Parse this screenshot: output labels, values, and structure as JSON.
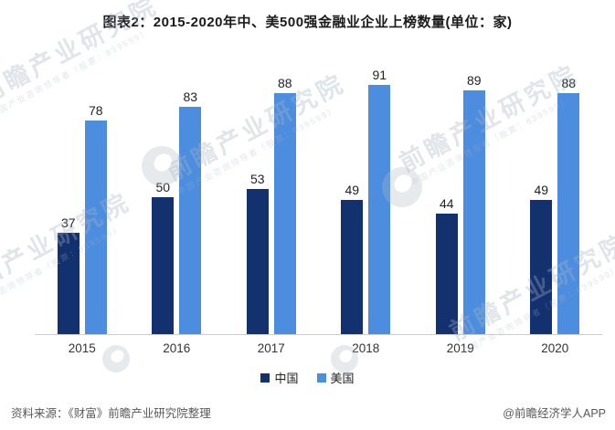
{
  "title": "图表2：2015-2020年中、美500强金融业企业上榜数量(单位：家)",
  "chart_data": {
    "type": "bar",
    "title": "图表2：2015-2020年中、美500强金融业企业上榜数量(单位：家)",
    "unit": "家",
    "categories": [
      "2015",
      "2016",
      "2017",
      "2018",
      "2019",
      "2020"
    ],
    "series": [
      {
        "id": "china",
        "name": "中国",
        "color": "#14316F",
        "values": [
          37,
          50,
          53,
          49,
          44,
          49
        ]
      },
      {
        "id": "usa",
        "name": "美国",
        "color": "#4D8DE0",
        "values": [
          78,
          83,
          88,
          91,
          89,
          88
        ]
      }
    ],
    "ylim": [
      0,
      95
    ],
    "grid": false,
    "value_labels": true,
    "legend_position": "bottom",
    "xlabel": "",
    "ylabel": ""
  },
  "footer": {
    "source": "资料来源：《财富》前瞻产业研究院整理",
    "credit": "@前瞻经济学人APP"
  },
  "watermark": {
    "text": "前瞻产业研究院",
    "subtext": "中国产业咨询领导者（股票：839599）"
  }
}
